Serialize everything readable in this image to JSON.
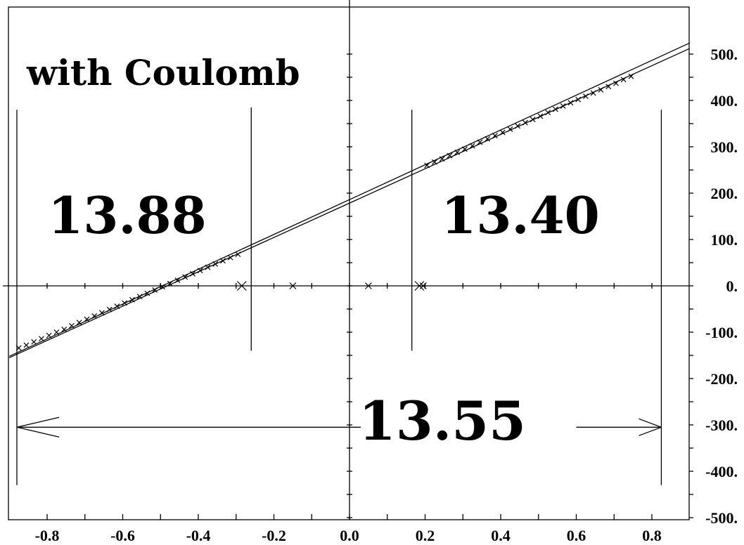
{
  "chart_data": {
    "type": "line",
    "title": "with Coulomb",
    "xlim": [
      -0.9,
      0.9
    ],
    "ylim": [
      -500,
      600
    ],
    "x_ticks": [
      -0.8,
      -0.6,
      -0.4,
      -0.2,
      0.0,
      0.2,
      0.4,
      0.6,
      0.8
    ],
    "x_tick_labels": [
      "-0.8",
      "-0.6",
      "-0.4",
      "-0.2",
      "0.0",
      "0.2",
      "0.4",
      "0.6",
      "0.8"
    ],
    "y_ticks": [
      500,
      400,
      300,
      200,
      100,
      0,
      -100,
      -200,
      -300,
      -400,
      -500
    ],
    "y_tick_labels": [
      "500.",
      "400.",
      "300.",
      "200.",
      "100.",
      "0.",
      "-100.",
      "-200.",
      "-300.",
      "-400.",
      "-500."
    ],
    "x_minor_step": 0.1,
    "y_minor_step": 50,
    "series": [
      {
        "points": [
          [
            -0.9,
            -152
          ],
          [
            0.9,
            524
          ]
        ]
      },
      {
        "points": [
          [
            -0.9,
            -155
          ],
          [
            0.9,
            512
          ]
        ]
      }
    ],
    "scatter_left": {
      "x": [
        -0.875,
        -0.855,
        -0.835,
        -0.815,
        -0.795,
        -0.775,
        -0.755,
        -0.735,
        -0.715,
        -0.695,
        -0.675,
        -0.655,
        -0.635,
        -0.615,
        -0.595,
        -0.575,
        -0.555,
        -0.535,
        -0.515,
        -0.495,
        -0.475,
        -0.455,
        -0.435,
        -0.415,
        -0.395,
        -0.375,
        -0.355,
        -0.335,
        -0.315,
        -0.295
      ],
      "y": [
        -134,
        -128,
        -121,
        -114,
        -107,
        -100,
        -94,
        -86,
        -79,
        -72,
        -65,
        -58,
        -51,
        -44,
        -37,
        -30,
        -23,
        -16,
        -9,
        -2,
        5,
        12,
        19,
        26,
        33,
        40,
        47,
        54,
        61,
        68
      ]
    },
    "scatter_right": {
      "x": [
        0.205,
        0.225,
        0.245,
        0.265,
        0.285,
        0.305,
        0.325,
        0.345,
        0.365,
        0.385,
        0.405,
        0.425,
        0.445,
        0.465,
        0.485,
        0.505,
        0.525,
        0.545,
        0.565,
        0.585,
        0.605,
        0.625,
        0.645,
        0.665,
        0.685,
        0.705,
        0.725,
        0.745
      ],
      "y": [
        260,
        267,
        274,
        281,
        288,
        295,
        302,
        310,
        317,
        324,
        331,
        338,
        345,
        352,
        359,
        366,
        374,
        381,
        388,
        395,
        402,
        409,
        416,
        423,
        430,
        437,
        445,
        452
      ]
    },
    "axis_crosses": [
      {
        "x": -0.285,
        "y": 0,
        "size": "large"
      },
      {
        "x": -0.15,
        "y": 0,
        "size": "small"
      },
      {
        "x": 0.05,
        "y": 0,
        "size": "small"
      },
      {
        "x": 0.185,
        "y": 0,
        "size": "large"
      },
      {
        "x": 0.195,
        "y": 0,
        "size": "small"
      }
    ],
    "vertical_markers": [
      {
        "x": -0.88,
        "y_from": -430,
        "y_to": 380
      },
      {
        "x": -0.26,
        "y_from": -140,
        "y_to": 385
      },
      {
        "x": 0.165,
        "y_from": -140,
        "y_to": 380
      },
      {
        "x": 0.825,
        "y_from": -430,
        "y_to": 380
      }
    ],
    "arrows": [
      {
        "from_x": 0.03,
        "to_x": -0.88,
        "y": -305
      },
      {
        "from_x": 0.6,
        "to_x": 0.825,
        "y": -305
      }
    ],
    "annotations": [
      {
        "text": "13.88",
        "x": -0.71,
        "y": 150
      },
      {
        "text": "13.40",
        "x": 0.5,
        "y": 150
      },
      {
        "text": "13.55",
        "x": 0.23,
        "y": -290
      }
    ]
  }
}
